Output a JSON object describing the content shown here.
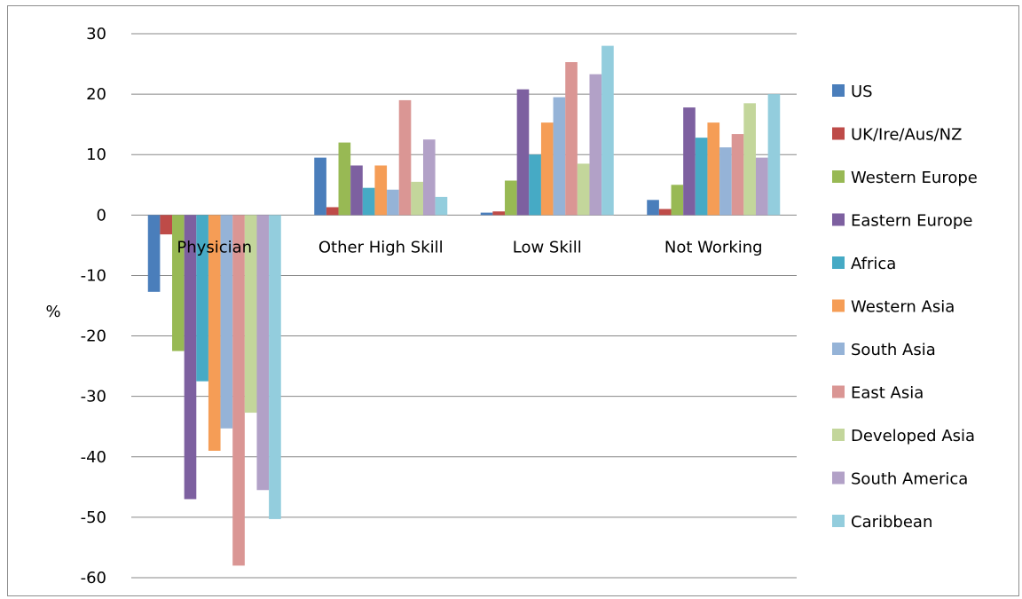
{
  "chart_data": {
    "type": "bar",
    "title": "",
    "xlabel": "",
    "ylabel": "%",
    "ylim": [
      -60,
      30
    ],
    "yticks": [
      30,
      20,
      10,
      0,
      -10,
      -20,
      -30,
      -40,
      -50,
      -60
    ],
    "grid": true,
    "legend_position": "right",
    "categories": [
      "Physician",
      "Other High Skill",
      "Low Skill",
      "Not Working"
    ],
    "series": [
      {
        "name": "US",
        "color": "#4a7ebb",
        "values": [
          -12.7,
          9.5,
          0.4,
          2.5
        ]
      },
      {
        "name": "UK/Ire/Aus/NZ",
        "color": "#be4b48",
        "values": [
          -3.2,
          1.3,
          0.6,
          1.0
        ]
      },
      {
        "name": "Western Europe",
        "color": "#98b954",
        "values": [
          -22.5,
          12.0,
          5.7,
          5.0
        ]
      },
      {
        "name": "Eastern Europe",
        "color": "#7d60a0",
        "values": [
          -47.0,
          8.2,
          20.8,
          17.8
        ]
      },
      {
        "name": "Africa",
        "color": "#46aac5",
        "values": [
          -27.5,
          4.5,
          10.0,
          12.8
        ]
      },
      {
        "name": "Western Asia",
        "color": "#f59d56",
        "values": [
          -39.0,
          8.2,
          15.3,
          15.3
        ]
      },
      {
        "name": "South Asia",
        "color": "#95b3d7",
        "values": [
          -35.3,
          4.2,
          19.5,
          11.2
        ]
      },
      {
        "name": "East Asia",
        "color": "#da9694",
        "values": [
          -58.0,
          19.0,
          25.3,
          13.4
        ]
      },
      {
        "name": "Developed Asia",
        "color": "#c3d69b",
        "values": [
          -32.7,
          5.5,
          8.5,
          18.5
        ]
      },
      {
        "name": "South America",
        "color": "#b2a1c7",
        "values": [
          -45.5,
          12.5,
          23.3,
          9.5
        ]
      },
      {
        "name": "Caribbean",
        "color": "#93cddd",
        "values": [
          -50.3,
          3.0,
          28.0,
          20.0
        ]
      }
    ]
  }
}
